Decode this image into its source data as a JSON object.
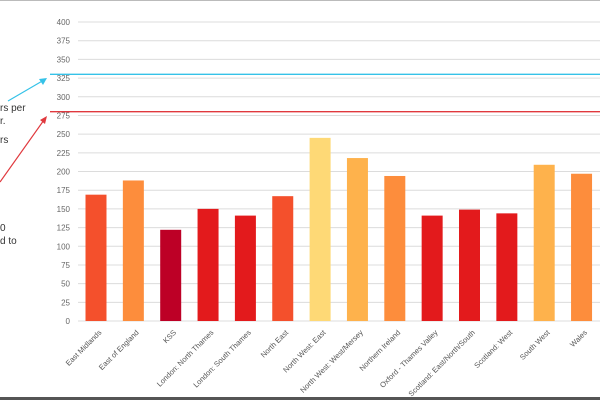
{
  "chart_data": {
    "type": "bar",
    "title": "",
    "xlabel": "",
    "ylabel": "",
    "ylim": [
      0,
      400
    ],
    "yticks": [
      0,
      25,
      50,
      75,
      100,
      125,
      150,
      175,
      200,
      225,
      250,
      275,
      300,
      325,
      350,
      375,
      400
    ],
    "grid": true,
    "categories": [
      "East Midlands",
      "East of England",
      "KSS",
      "London: North Thames",
      "London: South Thames",
      "North East",
      "North West: East",
      "North West: West/Mersey",
      "Northern Ireland",
      "Oxford - Thames Valley",
      "Scotland: East/North/South",
      "Scotland: West",
      "South West",
      "Wales"
    ],
    "values": [
      169,
      188,
      122,
      150,
      141,
      167,
      245,
      218,
      194,
      141,
      149,
      144,
      209,
      197
    ],
    "colors": [
      "#f4502c",
      "#fd8d3c",
      "#bd0026",
      "#e31a1c",
      "#e31a1c",
      "#f4502c",
      "#fed976",
      "#feb24c",
      "#fd8d3c",
      "#e31a1c",
      "#e31a1c",
      "#e31a1c",
      "#feb24c",
      "#fd8d3c"
    ],
    "reference_lines": [
      {
        "value": 330,
        "color": "#35c2e8"
      },
      {
        "value": 280,
        "color": "#e0393e"
      }
    ]
  },
  "annotations": {
    "note_1": "rs per\nr.",
    "note_2": "rs",
    "note_3": "0\nd to"
  }
}
